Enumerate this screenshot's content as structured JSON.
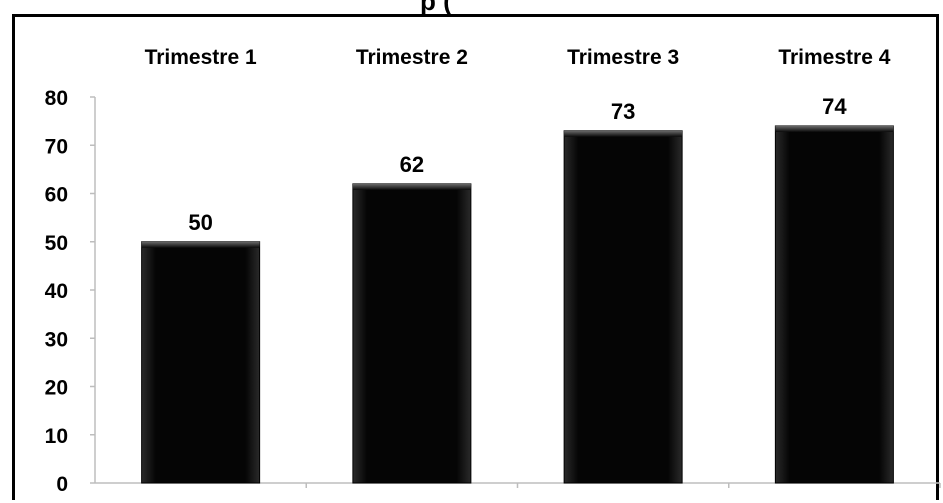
{
  "chart_data": {
    "type": "bar",
    "title": "",
    "title_fragment": "p                                                                              (",
    "categories": [
      "Trimestre 1",
      "Trimestre 2",
      "Trimestre 3",
      "Trimestre 4"
    ],
    "values": [
      50,
      62,
      73,
      74
    ],
    "data_labels": [
      "50",
      "62",
      "73",
      "74"
    ],
    "ylim": [
      0,
      80
    ],
    "yticks": [
      0,
      10,
      20,
      30,
      40,
      50,
      60,
      70,
      80
    ],
    "ytick_labels": [
      "0",
      "10",
      "20",
      "30",
      "40",
      "50",
      "60",
      "70",
      "80"
    ],
    "xlabel": "",
    "ylabel": "",
    "category_axis_position": "top",
    "grid": false,
    "legend": "none",
    "bar_color": "#000000"
  }
}
